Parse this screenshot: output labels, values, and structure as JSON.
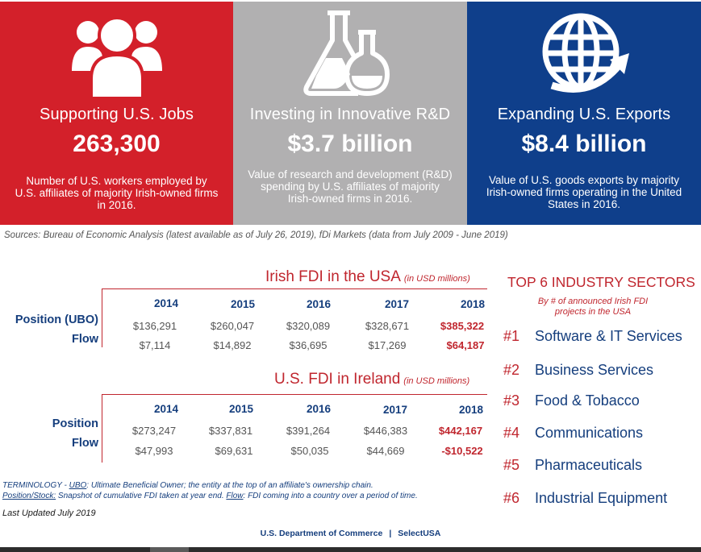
{
  "panels": {
    "jobs": {
      "title": "Supporting U.S. Jobs",
      "value": "263,300",
      "desc": "Number of U.S. workers employed by U.S. affiliates of majority Irish-owned firms in 2016.",
      "icon": "people-icon",
      "color": "#d3202a"
    },
    "rd": {
      "title": "Investing in Innovative R&D",
      "value": "$3.7 billion",
      "desc": "Value of research and development (R&D) spending by U.S. affiliates of majority Irish-owned firms in 2016.",
      "icon": "flask-icon",
      "color": "#b1b0b1"
    },
    "exports": {
      "title": "Expanding U.S. Exports",
      "value": "$8.4 billion",
      "desc": "Value of U.S. goods exports by majority Irish-owned firms operating in the United States in 2016.",
      "icon": "globe-icon",
      "color": "#0f3f8b"
    }
  },
  "sources": "Sources: Bureau of Economic Analysis (latest available as of July 26, 2019), fDi Markets (data from July 2009 - June 2019)",
  "usa_table": {
    "title": "Irish FDI in the USA",
    "unit": "(in USD millions)",
    "years": [
      "2014",
      "2015",
      "2016",
      "2017",
      "2018"
    ],
    "rows": [
      {
        "label": "Position (UBO)",
        "values": [
          "$136,291",
          "$260,047",
          "$320,089",
          "$328,671",
          "$385,322"
        ]
      },
      {
        "label": "Flow",
        "values": [
          "$7,114",
          "$14,892",
          "$36,695",
          "$17,269",
          "$64,187"
        ]
      }
    ]
  },
  "ireland_table": {
    "title": "U.S. FDI in Ireland",
    "unit": "(in USD millions)",
    "years": [
      "2014",
      "2015",
      "2016",
      "2017",
      "2018"
    ],
    "rows": [
      {
        "label": "Position",
        "values": [
          "$273,247",
          "$337,831",
          "$391,264",
          "$446,383",
          "$442,167"
        ]
      },
      {
        "label": "Flow",
        "values": [
          "$47,993",
          "$69,631",
          "$50,035",
          "$44,669",
          "-$10,522"
        ]
      }
    ]
  },
  "terminology": {
    "prefix": "TERMINOLOGY - ",
    "ubo_term": "UBO",
    "ubo_def": ": Ultimate Beneficial Owner; the entity at the top of an affiliate's ownership chain.",
    "position_term": "Position/Stock:",
    "position_def": " Snapshot of cumulative FDI taken at year end. ",
    "flow_term": "Flow",
    "flow_def": ": FDI coming into a country over a period of time."
  },
  "last_updated": "Last Updated July 2019",
  "sectors": {
    "title": "TOP 6 INDUSTRY SECTORS",
    "subtitle": "By # of announced Irish FDI projects in the USA",
    "items": [
      {
        "rank": "#1",
        "name": "Software & IT Services"
      },
      {
        "rank": "#2",
        "name": "Business Services"
      },
      {
        "rank": "#3",
        "name": "Food & Tobacco"
      },
      {
        "rank": "#4",
        "name": "Communications"
      },
      {
        "rank": "#5",
        "name": "Pharmaceuticals"
      },
      {
        "rank": "#6",
        "name": "Industrial Equipment"
      }
    ]
  },
  "footer": {
    "left": "U.S. Department of Commerce",
    "sep": "|",
    "right": "SelectUSA"
  }
}
